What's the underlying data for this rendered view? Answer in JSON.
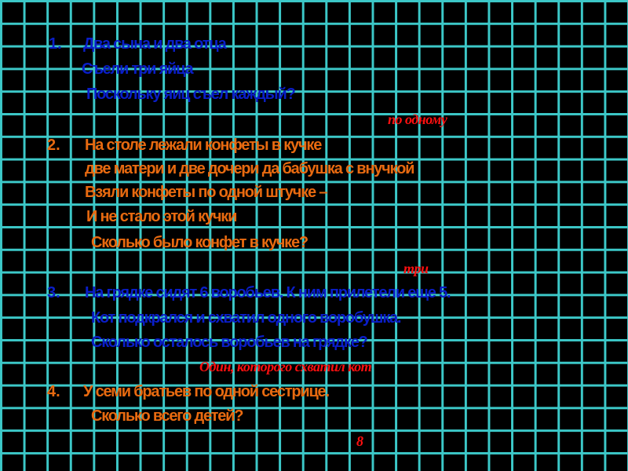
{
  "problems": [
    {
      "number": "1.",
      "color": "#0a1ec8",
      "lines": [
        "Два сына и два отца",
        "Съели три яйца",
        "Поскольку яиц съел каждый?"
      ],
      "answer": "по одному"
    },
    {
      "number": "2.",
      "color": "#e86a10",
      "lines": [
        "На столе  лежали конфеты в кучке",
        "две матери и две дочери да бабушка с внучкой",
        "Взяли конфеты по одной штучке –",
        "И не стало этой кучки",
        "Сколько было конфет в кучке?"
      ],
      "answer": "три"
    },
    {
      "number": "3.",
      "color": "#0a1ec8",
      "lines": [
        "На грядке сидят  6 воробьев. К ним прилетели еще  5.",
        "Кот подкрался и схватил одного воробушка.",
        "Сколько осталось воробьев на грядке?"
      ],
      "answer": "Один, которого схватил кот"
    },
    {
      "number": "4.",
      "color": "#e86a10",
      "lines": [
        "У семи братьев по одной сестрице.",
        "Сколько всего детей?"
      ],
      "answer": "8"
    }
  ],
  "colors": {
    "grid": "#3cc8c8",
    "background": "#000000",
    "answer": "#ff1010"
  }
}
